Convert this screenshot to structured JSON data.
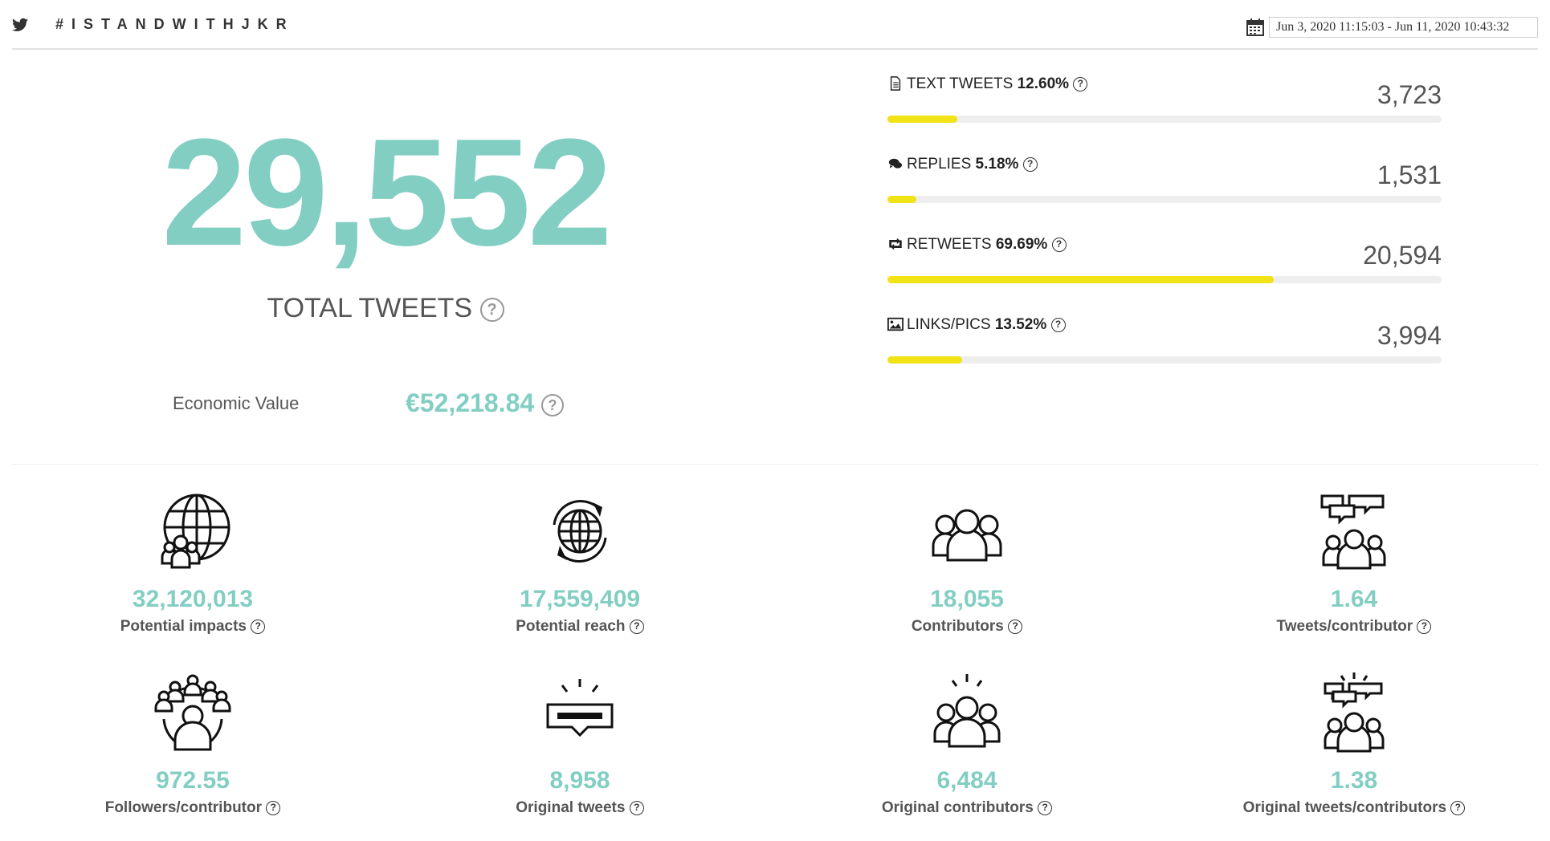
{
  "header": {
    "title": "#ISTANDWITHJKR",
    "date_range": "Jun 3, 2020 11:15:03 - Jun 11, 2020 10:43:32"
  },
  "summary": {
    "total_tweets": "29,552",
    "total_label": "TOTAL TWEETS",
    "help_glyph": "?",
    "economic_label": "Economic Value",
    "economic_value": "€52,218.84"
  },
  "breakdown": [
    {
      "icon": "document-icon",
      "label": "TEXT TWEETS",
      "percent": "12.60%",
      "value": "3,723",
      "fill_pct": 12.6
    },
    {
      "icon": "speech-bubbles-icon",
      "label": "REPLIES",
      "percent": "5.18%",
      "value": "1,531",
      "fill_pct": 5.18
    },
    {
      "icon": "retweet-icon",
      "label": "RETWEETS",
      "percent": "69.69%",
      "value": "20,594",
      "fill_pct": 69.69
    },
    {
      "icon": "image-icon",
      "label": "LINKS/PICS",
      "percent": "13.52%",
      "value": "3,994",
      "fill_pct": 13.52
    }
  ],
  "stats": [
    {
      "icon": "globe-people-icon",
      "value": "32,120,013",
      "label": "Potential impacts"
    },
    {
      "icon": "globe-refresh-icon",
      "value": "17,559,409",
      "label": "Potential reach"
    },
    {
      "icon": "group-icon",
      "value": "18,055",
      "label": "Contributors"
    },
    {
      "icon": "group-chat-icon",
      "value": "1.64",
      "label": "Tweets/contributor"
    },
    {
      "icon": "network-people-icon",
      "value": "972.55",
      "label": "Followers/contributor"
    },
    {
      "icon": "message-spark-icon",
      "value": "8,958",
      "label": "Original tweets"
    },
    {
      "icon": "group-spark-icon",
      "value": "6,484",
      "label": "Original contributors"
    },
    {
      "icon": "group-chat-spark-icon",
      "value": "1.38",
      "label": "Original tweets/contributors"
    }
  ],
  "colors": {
    "accent": "#82cec3",
    "bar_fill": "#f2e317",
    "bar_track": "#eeeeee"
  }
}
